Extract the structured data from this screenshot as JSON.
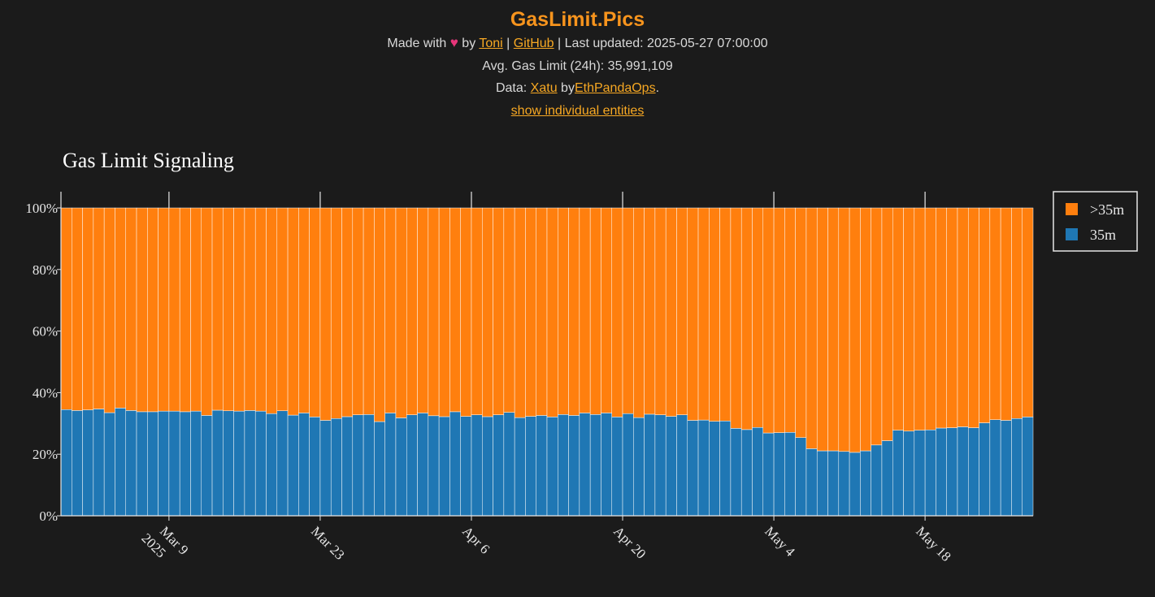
{
  "header": {
    "title": "GasLimit.Pics",
    "made_with": "Made with",
    "heart": "♥",
    "by": "by",
    "author_link": "Toni",
    "sep1": "|",
    "github_link": "GitHub",
    "sep2": "|",
    "last_updated": "Last updated: 2025-05-27 07:00:00",
    "avg_gas_limit": "Avg. Gas Limit (24h): 35,991,109",
    "data_prefix": "Data:",
    "data_link": "Xatu",
    "data_by": "by",
    "data_by_link": "EthPandaOps",
    "data_suffix": ".",
    "toggle_link": "show individual entities"
  },
  "colors": {
    "background": "#1b1b1b",
    "accent": "#f7941d",
    "series_35m": "#1f77b4",
    "series_gt35m": "#ff7f0e"
  },
  "chart_data": {
    "type": "bar",
    "stacked": true,
    "title": "Gas Limit Signaling",
    "x_start": "2025-02-27",
    "x_end": "2025-05-26",
    "x_ticks": [
      {
        "date": "2025-03-09",
        "label": "Mar 9",
        "sublabel": "2025"
      },
      {
        "date": "2025-03-23",
        "label": "Mar 23",
        "sublabel": ""
      },
      {
        "date": "2025-04-06",
        "label": "Apr 6",
        "sublabel": ""
      },
      {
        "date": "2025-04-20",
        "label": "Apr 20",
        "sublabel": ""
      },
      {
        "date": "2025-05-04",
        "label": "May 4",
        "sublabel": ""
      },
      {
        "date": "2025-05-18",
        "label": "May 18",
        "sublabel": ""
      }
    ],
    "y_ticks": [
      "0%",
      "20%",
      "40%",
      "60%",
      "80%",
      "100%"
    ],
    "ylim": [
      0,
      100
    ],
    "legend_position": "top-right",
    "series": [
      {
        "name": "35m",
        "values": [
          34.5,
          34.2,
          34.4,
          34.7,
          33.5,
          35.0,
          34.2,
          33.8,
          33.8,
          34.0,
          34.0,
          33.8,
          34.0,
          32.6,
          34.3,
          34.1,
          34.0,
          34.2,
          34.0,
          33.2,
          34.1,
          32.7,
          33.4,
          32.1,
          31.0,
          31.6,
          32.2,
          32.8,
          32.9,
          30.6,
          33.4,
          31.8,
          32.8,
          33.4,
          32.5,
          32.2,
          33.8,
          32.3,
          32.8,
          32.2,
          32.8,
          33.6,
          31.9,
          32.3,
          32.6,
          32.1,
          32.9,
          32.6,
          33.4,
          32.9,
          33.4,
          32.1,
          33.2,
          31.9,
          33.0,
          32.8,
          32.3,
          32.8,
          31.0,
          31.1,
          30.7,
          30.8,
          28.4,
          28.0,
          28.7,
          26.9,
          27.0,
          27.1,
          25.4,
          21.8,
          21.1,
          21.1,
          20.9,
          20.6,
          21.1,
          23.0,
          24.4,
          27.8,
          27.5,
          27.8,
          27.9,
          28.5,
          28.6,
          28.9,
          28.6,
          30.2,
          31.2,
          31.0,
          31.6,
          32.1
        ]
      },
      {
        "name": ">35m",
        "values": [
          65.5,
          65.8,
          65.6,
          65.3,
          66.5,
          65.0,
          65.8,
          66.2,
          66.2,
          66.0,
          66.0,
          66.2,
          66.0,
          67.4,
          65.7,
          65.9,
          66.0,
          65.8,
          66.0,
          66.8,
          65.9,
          67.3,
          66.6,
          67.9,
          69.0,
          68.4,
          67.8,
          67.2,
          67.1,
          69.4,
          66.6,
          68.2,
          67.2,
          66.6,
          67.5,
          67.8,
          66.2,
          67.7,
          67.2,
          67.8,
          67.2,
          66.4,
          68.1,
          67.7,
          67.4,
          67.9,
          67.1,
          67.4,
          66.6,
          67.1,
          66.6,
          67.9,
          66.8,
          68.1,
          67.0,
          67.2,
          67.7,
          67.2,
          69.0,
          68.9,
          69.3,
          69.2,
          71.6,
          72.0,
          71.3,
          73.1,
          73.0,
          72.9,
          74.6,
          78.2,
          78.9,
          78.9,
          79.1,
          79.4,
          78.9,
          77.0,
          75.6,
          72.2,
          72.5,
          72.2,
          72.1,
          71.5,
          71.4,
          71.1,
          71.4,
          69.8,
          68.8,
          69.0,
          68.4,
          67.9
        ]
      }
    ]
  }
}
